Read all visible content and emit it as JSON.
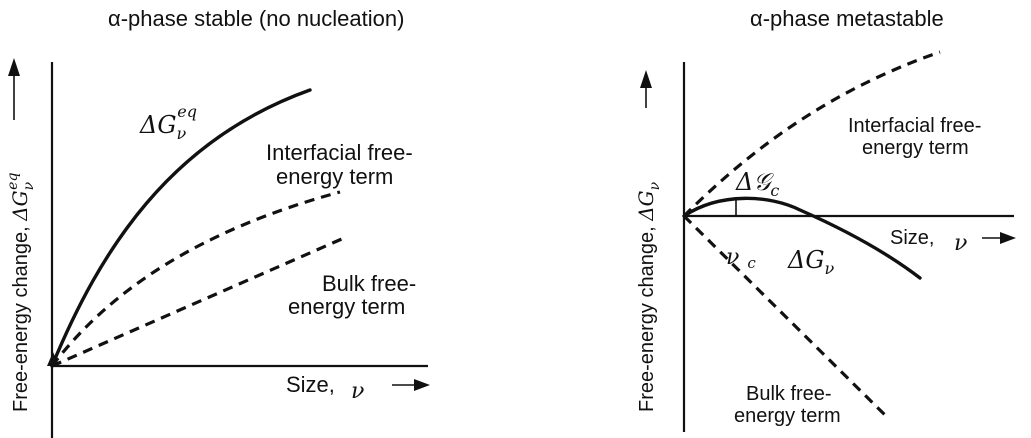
{
  "left_panel": {
    "title": "α-phase stable (no nucleation)",
    "y_axis_label": "Free-energy change, ",
    "y_axis_symbol": "ΔG",
    "y_axis_sub": "ν",
    "y_axis_sup": "eq",
    "x_axis_label": "Size, ",
    "x_axis_symbol": "ν",
    "curve_label_symbol": "ΔG",
    "curve_label_sub": "ν",
    "curve_label_sup": "eq",
    "interfacial_line1": "Interfacial free-",
    "interfacial_line2": "energy term",
    "bulk_line1": "Bulk free-",
    "bulk_line2": "energy term"
  },
  "right_panel": {
    "title": "α-phase metastable",
    "y_axis_label": "Free-energy change, ",
    "y_axis_symbol": "ΔG",
    "y_axis_sub": "ν",
    "x_axis_label": "Size, ",
    "x_axis_symbol": "ν",
    "interfacial_line1": "Interfacial free-",
    "interfacial_line2": "energy term",
    "bulk_line1": "Bulk free-",
    "bulk_line2": "energy term",
    "critical_symbol": "Δ𝒢",
    "critical_sub": "c",
    "critical_size_symbol": "ν",
    "critical_size_sub": "c",
    "curve_label_symbol": "ΔG",
    "curve_label_sub": "ν"
  }
}
